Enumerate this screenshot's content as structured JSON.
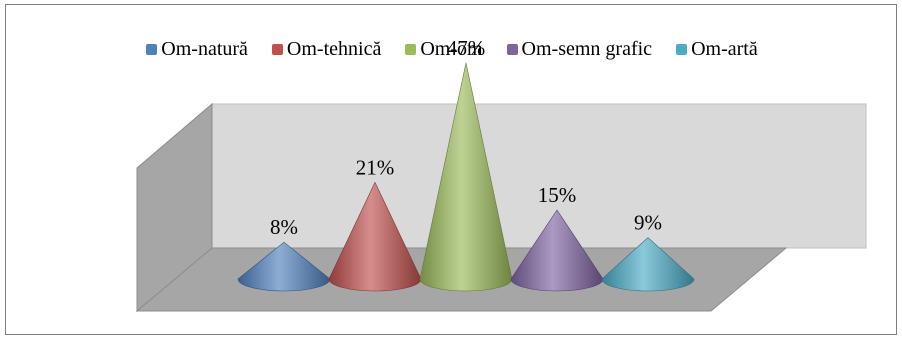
{
  "chart_data": {
    "type": "bar",
    "subtype": "3d-cone",
    "title": "",
    "categories": [
      "Om-natură",
      "Om-tehnică",
      "Om-om",
      "Om-semn grafic",
      "Om-artă"
    ],
    "series": [
      {
        "name": "Om-natură",
        "value": 8,
        "label": "8%",
        "color": "#4f81bd"
      },
      {
        "name": "Om-tehnică",
        "value": 21,
        "label": "21%",
        "color": "#c0504d"
      },
      {
        "name": "Om-om",
        "value": 47,
        "label": "47%",
        "color": "#9bbb59"
      },
      {
        "name": "Om-semn grafic",
        "value": 15,
        "label": "15%",
        "color": "#8064a2"
      },
      {
        "name": "Om-artă",
        "value": 9,
        "label": "9%",
        "color": "#4bacc6"
      }
    ],
    "ylim": [
      0,
      50
    ],
    "legend_position": "top",
    "grid": false,
    "axes_visible": false
  }
}
